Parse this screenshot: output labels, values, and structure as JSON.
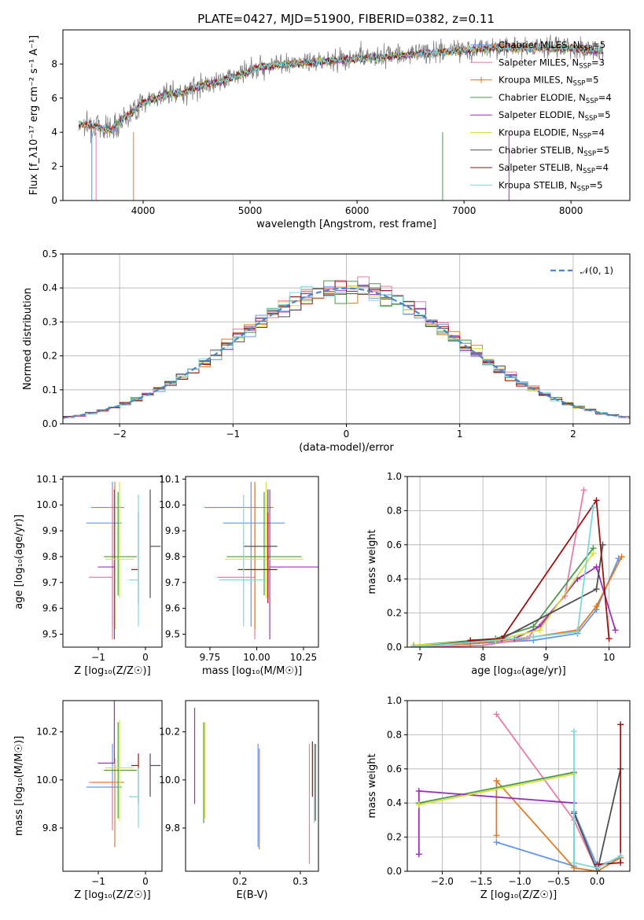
{
  "colors": {
    "Chabrier MILES": "#6495ed",
    "Salpeter MILES": "#e87da3",
    "Kroupa MILES": "#e07b24",
    "Chabrier ELODIE": "#4a9a4a",
    "Salpeter ELODIE": "#9b30b8",
    "Kroupa ELODIE": "#d8e040",
    "Chabrier STELIB": "#505050",
    "Salpeter STELIB": "#a01010",
    "Kroupa STELIB": "#7fd8d8"
  },
  "chart_data": [
    {
      "id": "spectrum",
      "type": "line",
      "title": "PLATE=0427, MJD=51900, FIBERID=0382, z=0.11",
      "xlabel": "wavelength [Angstrom, rest frame]",
      "ylabel": "Flux [f_λ10⁻¹⁷ erg cm⁻² s⁻¹ A⁻¹]",
      "xlim": [
        3250,
        8550
      ],
      "ylim": [
        0,
        10
      ],
      "grid": false,
      "xticks": [
        4000,
        5000,
        6000,
        7000,
        8000
      ],
      "yticks": [
        0,
        2,
        4,
        6,
        8
      ],
      "legend_position": "top-right",
      "data_color": "#808080",
      "continuum_x": [
        3400,
        3500,
        3600,
        3700,
        3800,
        3900,
        4000,
        4100,
        4200,
        4300,
        4400,
        4500,
        4700,
        4900,
        5100,
        5300,
        5500,
        5700,
        5900,
        6100,
        6300,
        6500,
        6700,
        6900,
        7100,
        7300,
        7500,
        7700,
        7900,
        8100,
        8300
      ],
      "continuum_y": [
        4.5,
        4.5,
        4.3,
        4.2,
        4.8,
        5.2,
        5.8,
        6.0,
        6.2,
        6.3,
        6.4,
        6.7,
        7.0,
        7.4,
        7.9,
        8.0,
        8.1,
        8.2,
        8.3,
        8.4,
        8.5,
        8.6,
        8.7,
        8.8,
        8.9,
        9.0,
        9.0,
        9.0,
        9.0,
        8.9,
        8.8
      ],
      "legend": [
        {
          "label": "Chabrier MILES, N",
          "sub": "SSP",
          "eq": "=5"
        },
        {
          "label": "Salpeter MILES, N",
          "sub": "SSP",
          "eq": "=3"
        },
        {
          "label": "Kroupa MILES, N",
          "sub": "SSP",
          "eq": "=5"
        },
        {
          "label": "Chabrier ELODIE, N",
          "sub": "SSP",
          "eq": "=4"
        },
        {
          "label": "Salpeter ELODIE, N",
          "sub": "SSP",
          "eq": "=5"
        },
        {
          "label": "Kroupa ELODIE, N",
          "sub": "SSP",
          "eq": "=4"
        },
        {
          "label": "Chabrier STELIB, N",
          "sub": "SSP",
          "eq": "=5"
        },
        {
          "label": "Salpeter STELIB, N",
          "sub": "SSP",
          "eq": "=4"
        },
        {
          "label": "Kroupa STELIB, N",
          "sub": "SSP",
          "eq": "=5"
        }
      ]
    },
    {
      "id": "residuals",
      "type": "line",
      "xlabel": "(data-model)/error",
      "ylabel": "Normed distribution",
      "xlim": [
        -2.5,
        2.5
      ],
      "ylim": [
        0,
        0.5
      ],
      "grid": true,
      "xticks": [
        -2,
        -1,
        0,
        1,
        2
      ],
      "yticks": [
        0.0,
        0.1,
        0.2,
        0.3,
        0.4,
        0.5
      ],
      "legend": [
        {
          "label": "𝒩(0, 1)"
        }
      ],
      "legend_position": "top-right",
      "bin_width": 0.1
    },
    {
      "id": "age-Z",
      "type": "scatter",
      "xlabel": "Z [log₁₀(Z/Z☉)]",
      "ylabel": "age  [log₁₀(age/yr)]",
      "xlim": [
        -1.75,
        0.35
      ],
      "ylim": [
        9.45,
        10.11
      ],
      "grid": false,
      "xticks": [
        -1,
        0
      ],
      "yticks": [
        9.5,
        9.6,
        9.7,
        9.8,
        9.9,
        10.0,
        10.1
      ]
    },
    {
      "id": "age-mass",
      "type": "scatter",
      "xlabel": "mass [log₁₀(M/M☉)]",
      "xlim": [
        9.62,
        10.33
      ],
      "ylim": [
        9.45,
        10.11
      ],
      "grid": false,
      "xticks": [
        9.75,
        10.0,
        10.25
      ],
      "yticks": [
        9.5,
        9.6,
        9.7,
        9.8,
        9.9,
        10.0,
        10.1
      ]
    },
    {
      "id": "weight-age",
      "type": "line",
      "xlabel": "age  [log₁₀(age/yr)]",
      "ylabel": "mass weight",
      "xlim": [
        6.8,
        10.33
      ],
      "ylim": [
        0,
        1
      ],
      "grid": true,
      "xticks": [
        7,
        8,
        9,
        10
      ],
      "yticks": [
        0.0,
        0.2,
        0.4,
        0.6,
        0.8,
        1.0
      ]
    },
    {
      "id": "mass-Z",
      "type": "scatter",
      "xlabel": "Z [log₁₀(Z/Z☉)]",
      "ylabel": "mass [log₁₀(M/M☉)]",
      "xlim": [
        -1.75,
        0.35
      ],
      "ylim": [
        9.62,
        10.33
      ],
      "grid": false,
      "xticks": [
        -1,
        0
      ],
      "yticks": [
        9.8,
        10.0,
        10.2
      ]
    },
    {
      "id": "mass-EBV",
      "type": "scatter",
      "xlabel": "E(B-V)",
      "xlim": [
        0.11,
        0.33
      ],
      "ylim": [
        9.62,
        10.33
      ],
      "grid": false,
      "xticks": [
        0.1,
        0.2,
        0.3
      ],
      "yticks": [
        9.8,
        10.0,
        10.2
      ]
    },
    {
      "id": "weight-Z",
      "type": "line",
      "xlabel": "Z [log₁₀(Z/Z☉)]",
      "ylabel": "mass weight",
      "xlim": [
        -2.45,
        0.42
      ],
      "ylim": [
        0,
        1
      ],
      "grid": true,
      "xticks": [
        -2.0,
        -1.5,
        -1.0,
        -0.5,
        0.0
      ],
      "yticks": [
        0.0,
        0.2,
        0.4,
        0.6,
        0.8,
        1.0
      ]
    }
  ],
  "models": [
    {
      "name": "Chabrier MILES",
      "Z": -0.7,
      "Zerr": [
        0.55,
        0.2
      ],
      "age": 9.93,
      "ageErr": [
        0.4,
        0.16
      ],
      "mass": 9.97,
      "massErr": [
        0.15,
        0.18
      ],
      "ebv": 0.23,
      "ebvMass": [
        9.72,
        10.15
      ],
      "wAge": [
        [
          6.9,
          0.01
        ],
        [
          7.8,
          0.02
        ],
        [
          8.8,
          0.04
        ],
        [
          9.5,
          0.08
        ],
        [
          9.8,
          0.22
        ],
        [
          10.15,
          0.52
        ]
      ],
      "wZ": [
        [
          -1.3,
          0.17
        ],
        [
          -0.3,
          0.03
        ],
        [
          -0.3,
          0.35
        ],
        [
          0.0,
          0.03
        ],
        [
          0.3,
          0.08
        ]
      ]
    },
    {
      "name": "Salpeter MILES",
      "Z": -0.7,
      "Zerr": [
        0.5,
        0.0
      ],
      "age": 9.72,
      "ageErr": [
        0.24,
        0.35
      ],
      "mass": 9.99,
      "massErr": [
        0.2,
        0.0
      ],
      "ebv": 0.315,
      "ebvMass": [
        9.65,
        10.15
      ],
      "wAge": [
        [
          6.9,
          0.0
        ],
        [
          8.0,
          0.01
        ],
        [
          8.7,
          0.05
        ],
        [
          9.3,
          0.3
        ],
        [
          9.6,
          0.92
        ]
      ],
      "wZ": [
        [
          -1.3,
          0.92
        ],
        [
          -0.3,
          0.3
        ],
        [
          0.0,
          0.0
        ]
      ]
    },
    {
      "name": "Kroupa MILES",
      "Z": -0.65,
      "Zerr": [
        0.5,
        0.2
      ],
      "age": 9.99,
      "ageErr": [
        0.47,
        0.1
      ],
      "mass": 9.99,
      "massErr": [
        0.27,
        0.1
      ],
      "ebv": 0.232,
      "ebvMass": [
        9.71,
        10.13
      ],
      "wAge": [
        [
          6.9,
          0.01
        ],
        [
          7.8,
          0.02
        ],
        [
          8.8,
          0.06
        ],
        [
          9.5,
          0.1
        ],
        [
          9.8,
          0.24
        ],
        [
          10.2,
          0.53
        ]
      ],
      "wZ": [
        [
          -1.3,
          0.21
        ],
        [
          -1.3,
          0.53
        ],
        [
          -0.3,
          0.02
        ],
        [
          0.0,
          0.0
        ],
        [
          0.3,
          0.08
        ]
      ]
    },
    {
      "name": "Chabrier ELODIE",
      "Z": -0.58,
      "Zerr": [
        0.3,
        0.4
      ],
      "age": 9.8,
      "ageErr": [
        0.15,
        0.25
      ],
      "mass": 10.04,
      "massErr": [
        0.2,
        0.2
      ],
      "ebv": 0.14,
      "ebvMass": [
        9.82,
        10.24
      ],
      "wAge": [
        [
          6.9,
          0.01
        ],
        [
          8.2,
          0.05
        ],
        [
          8.8,
          0.12
        ],
        [
          9.75,
          0.58
        ]
      ],
      "wZ": [
        [
          -2.3,
          0.4
        ],
        [
          -0.3,
          0.58
        ]
      ]
    },
    {
      "name": "Salpeter ELODIE",
      "Z": -0.66,
      "Zerr": [
        0.35,
        0.0
      ],
      "age": 9.76,
      "ageErr": [
        0.28,
        0.3
      ],
      "mass": 10.07,
      "massErr": [
        0.0,
        0.3
      ],
      "ebv": 0.125,
      "ebvMass": [
        9.9,
        10.3
      ],
      "wAge": [
        [
          6.9,
          0.0
        ],
        [
          8.5,
          0.05
        ],
        [
          8.9,
          0.12
        ],
        [
          9.5,
          0.4
        ],
        [
          9.8,
          0.47
        ],
        [
          10.1,
          0.1
        ]
      ],
      "wZ": [
        [
          -2.3,
          0.1
        ],
        [
          -2.3,
          0.47
        ],
        [
          -0.3,
          0.4
        ]
      ]
    },
    {
      "name": "Kroupa ELODIE",
      "Z": -0.55,
      "Zerr": [
        0.3,
        0.3
      ],
      "age": 9.79,
      "ageErr": [
        0.15,
        0.3
      ],
      "mass": 10.05,
      "massErr": [
        0.22,
        0.2
      ],
      "ebv": 0.142,
      "ebvMass": [
        9.84,
        10.24
      ],
      "wAge": [
        [
          6.9,
          0.01
        ],
        [
          8.2,
          0.04
        ],
        [
          8.9,
          0.1
        ],
        [
          9.75,
          0.55
        ]
      ],
      "wZ": [
        [
          -2.3,
          0.39
        ],
        [
          -0.3,
          0.57
        ]
      ]
    },
    {
      "name": "Chabrier STELIB",
      "Z": 0.1,
      "Zerr": [
        0.0,
        0.22
      ],
      "age": 9.84,
      "ageErr": [
        0.2,
        0.22
      ],
      "mass": 10.06,
      "massErr": [
        0.13,
        0.05
      ],
      "ebv": 0.325,
      "ebvMass": [
        9.83,
        10.15
      ],
      "wAge": [
        [
          6.9,
          0.0
        ],
        [
          8.3,
          0.05
        ],
        [
          9.8,
          0.34
        ],
        [
          9.9,
          0.6
        ]
      ],
      "wZ": [
        [
          -0.3,
          0.34
        ],
        [
          0.0,
          0.0
        ],
        [
          0.3,
          0.6
        ]
      ]
    },
    {
      "name": "Salpeter STELIB",
      "Z": -0.15,
      "Zerr": [
        0.15,
        0.0
      ],
      "age": 9.75,
      "ageErr": [
        0.13,
        0.22
      ],
      "mass": 10.06,
      "massErr": [
        0.16,
        0.05
      ],
      "ebv": 0.32,
      "ebvMass": [
        9.93,
        10.16
      ],
      "wAge": [
        [
          7.8,
          0.04
        ],
        [
          8.3,
          0.05
        ],
        [
          9.8,
          0.86
        ],
        [
          10.0,
          0.05
        ]
      ],
      "wZ": [
        [
          0.0,
          0.04
        ],
        [
          0.3,
          0.05
        ],
        [
          0.3,
          0.86
        ]
      ]
    },
    {
      "name": "Kroupa STELIB",
      "Z": -0.15,
      "Zerr": [
        0.2,
        0.0
      ],
      "age": 9.71,
      "ageErr": [
        0.18,
        0.33
      ],
      "mass": 9.93,
      "massErr": [
        0.13,
        0.12
      ],
      "ebv": 0.323,
      "ebvMass": [
        9.82,
        10.15
      ],
      "wAge": [
        [
          6.9,
          0.0
        ],
        [
          8.8,
          0.06
        ],
        [
          9.5,
          0.09
        ],
        [
          9.75,
          0.82
        ]
      ],
      "wZ": [
        [
          -0.3,
          0.82
        ],
        [
          -0.3,
          0.05
        ],
        [
          0.0,
          0.02
        ],
        [
          0.3,
          0.09
        ]
      ]
    }
  ]
}
